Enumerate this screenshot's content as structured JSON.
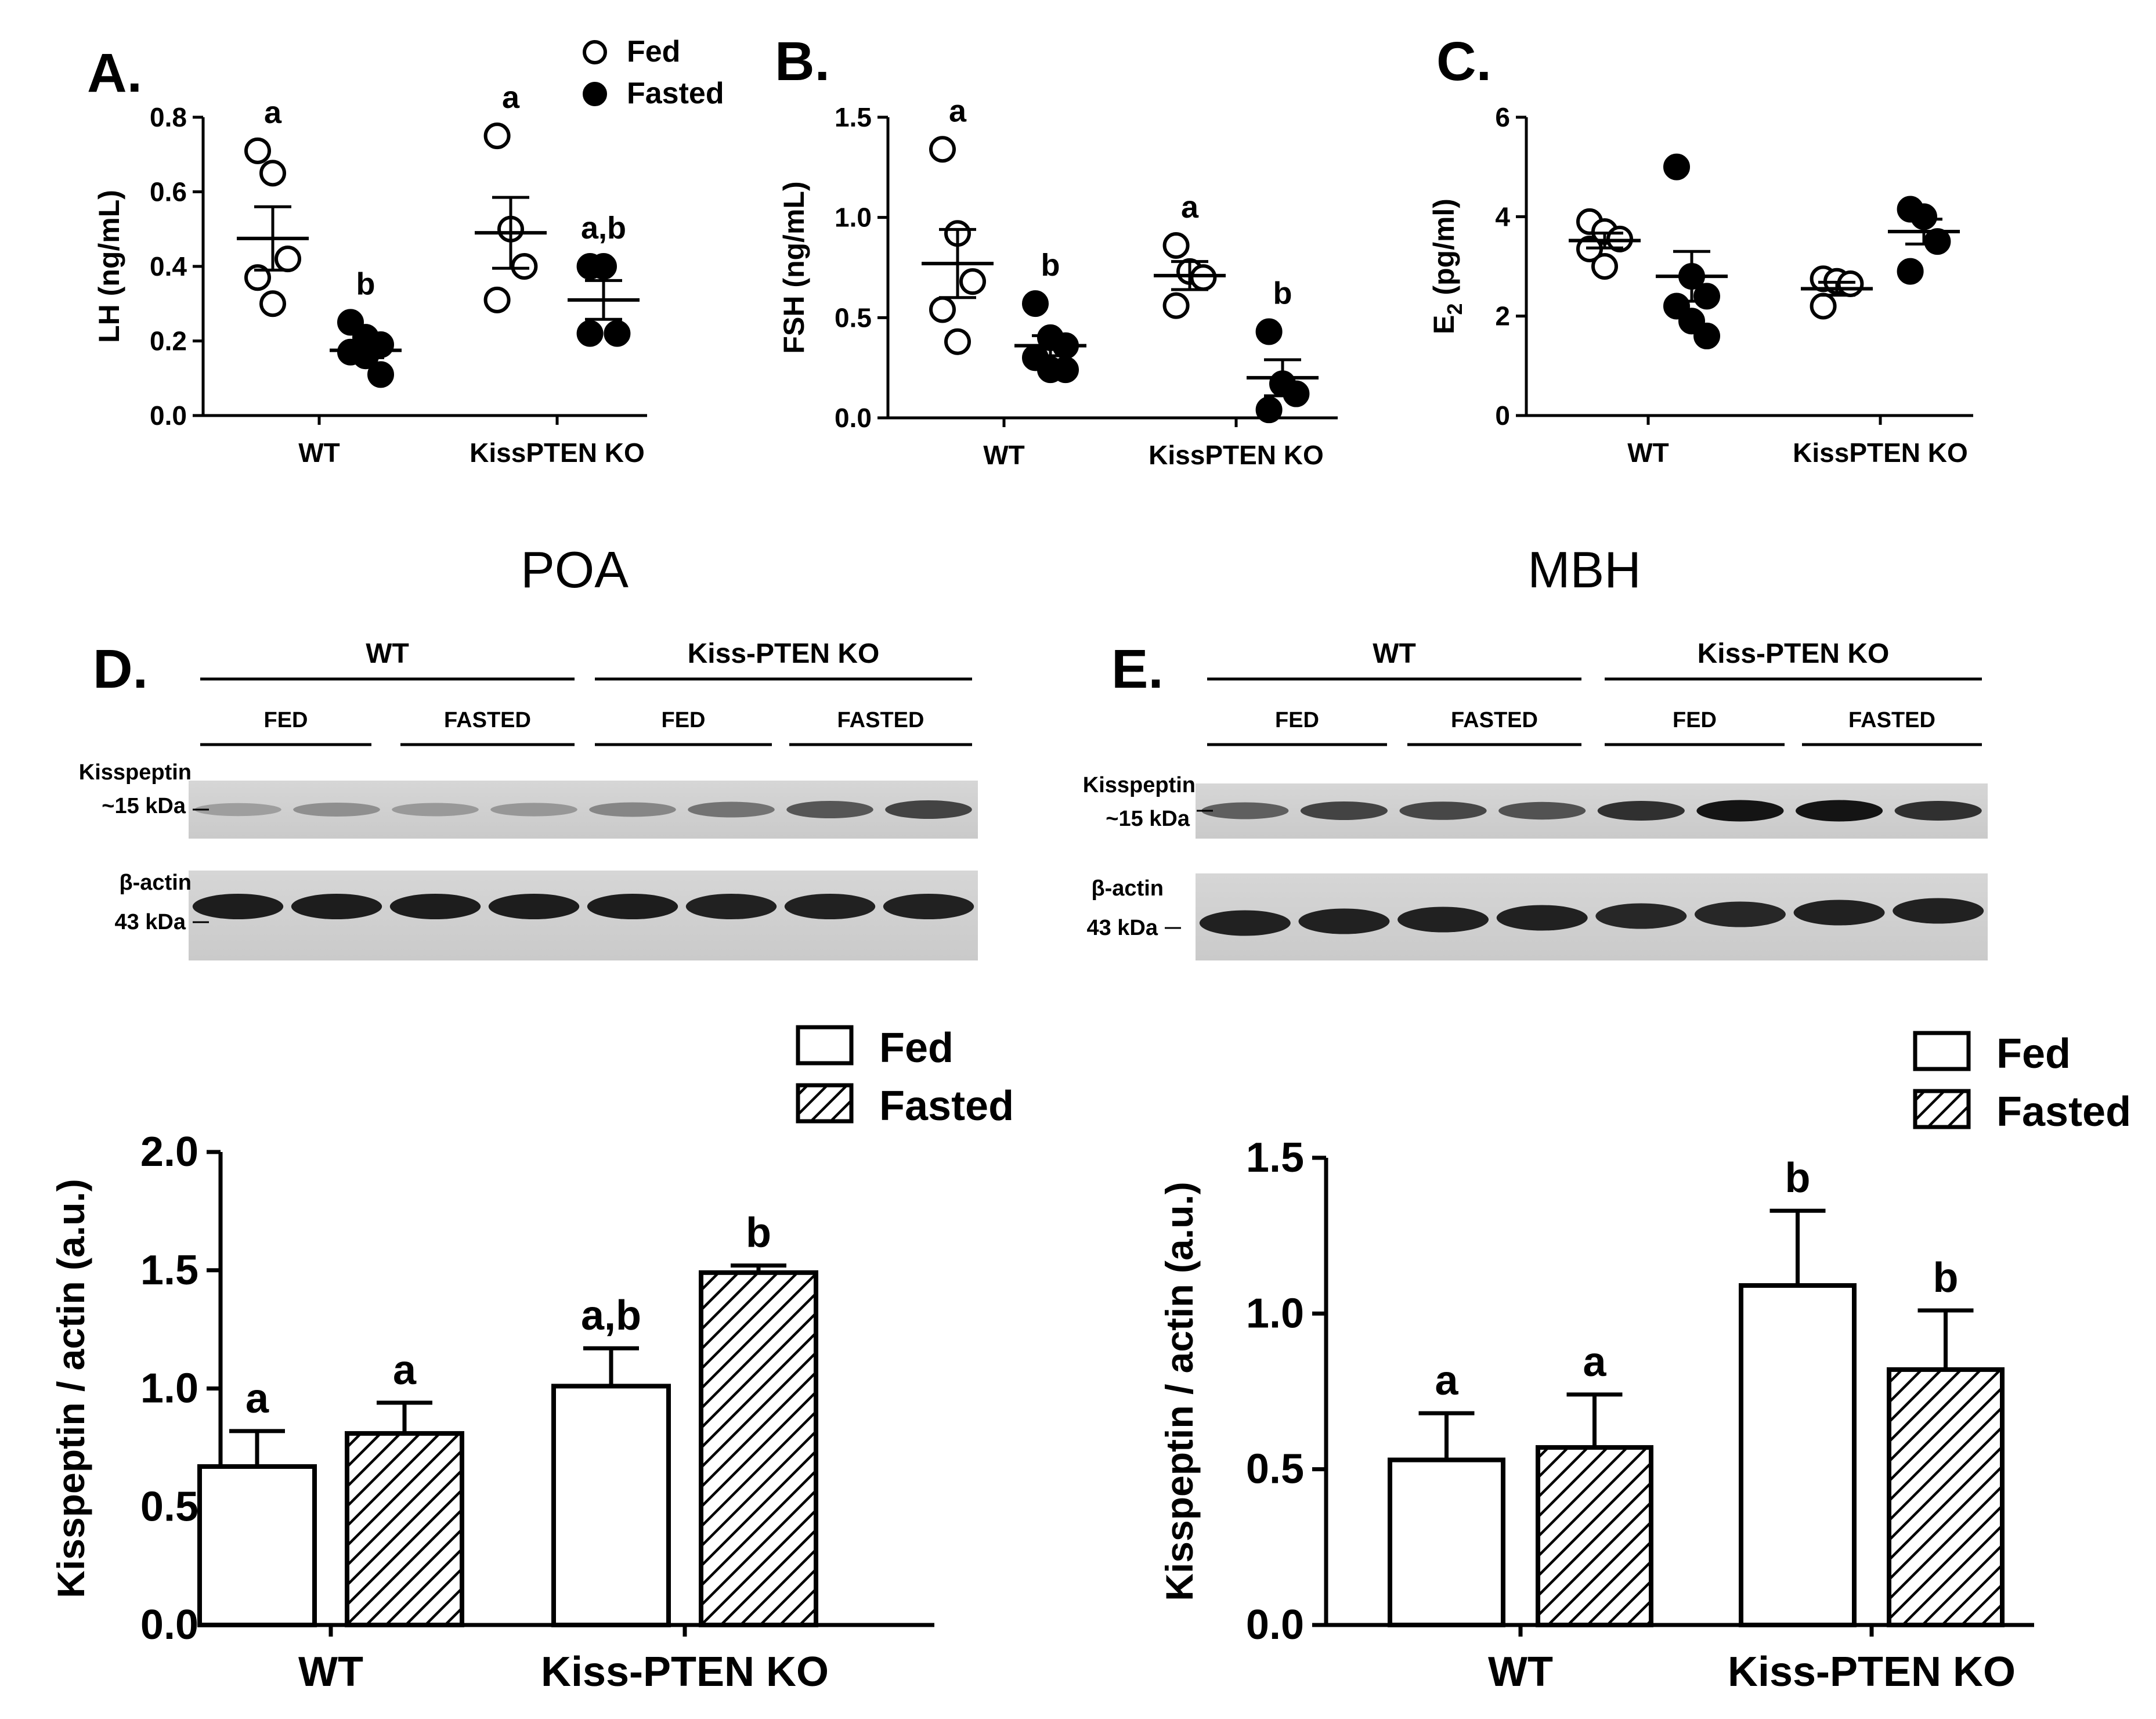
{
  "panel_letters": [
    "A.",
    "B.",
    "C.",
    "D.",
    "E."
  ],
  "region_titles": {
    "left": "POA",
    "right": "MBH"
  },
  "blots": [
    {
      "group_labels": [
        "WT",
        "Kiss-PTEN KO"
      ],
      "subgroup_labels": [
        "FED",
        "FASTED",
        "FED",
        "FASTED"
      ],
      "band1_labels": [
        "Kisspeptin",
        "~15 kDa"
      ],
      "band2_labels": [
        "β-actin",
        "43 kDa"
      ],
      "kiss_intensity": [
        0.22,
        0.3,
        0.25,
        0.26,
        0.35,
        0.45,
        0.6,
        0.7
      ],
      "actin_intensity": [
        0.9,
        0.9,
        0.9,
        0.9,
        0.9,
        0.88,
        0.88,
        0.88
      ]
    },
    {
      "group_labels": [
        "WT",
        "Kiss-PTEN KO"
      ],
      "subgroup_labels": [
        "FED",
        "FASTED",
        "FED",
        "FASTED"
      ],
      "band1_labels": [
        "Kisspeptin",
        "~15 kDa"
      ],
      "band2_labels": [
        "β-actin",
        "43 kDa"
      ],
      "kiss_intensity": [
        0.55,
        0.7,
        0.68,
        0.62,
        0.8,
        0.95,
        0.95,
        0.8
      ],
      "actin_intensity": [
        0.88,
        0.88,
        0.88,
        0.88,
        0.85,
        0.85,
        0.88,
        0.88
      ]
    }
  ],
  "chart_data": [
    {
      "type": "scatter",
      "panel": "A.",
      "ylabel": "LH (ng/mL)",
      "categories": [
        "WT",
        "KissPTEN KO"
      ],
      "ylim": [
        0,
        0.8
      ],
      "yticks": [
        "0.0",
        "0.2",
        "0.4",
        "0.6",
        "0.8"
      ],
      "legend": [
        "Fed",
        "Fasted"
      ],
      "legend_position": "top-right",
      "groups": [
        {
          "category": "WT",
          "series": "Fed",
          "points": [
            0.71,
            0.65,
            0.42,
            0.37,
            0.3
          ],
          "mean": 0.475,
          "sem": 0.085,
          "label": "a"
        },
        {
          "category": "WT",
          "series": "Fasted",
          "points": [
            0.25,
            0.21,
            0.19,
            0.17,
            0.16,
            0.11
          ],
          "mean": 0.175,
          "sem": 0.02,
          "label": "b"
        },
        {
          "category": "KissPTEN KO",
          "series": "Fed",
          "points": [
            0.75,
            0.5,
            0.4,
            0.31
          ],
          "mean": 0.49,
          "sem": 0.095,
          "label": "a"
        },
        {
          "category": "KissPTEN KO",
          "series": "Fasted",
          "points": [
            0.4,
            0.4,
            0.22,
            0.22
          ],
          "mean": 0.31,
          "sem": 0.052,
          "label": "a,b"
        }
      ]
    },
    {
      "type": "scatter",
      "panel": "B.",
      "ylabel": "FSH (ng/mL)",
      "categories": [
        "WT",
        "KissPTEN KO"
      ],
      "ylim": [
        0,
        1.5
      ],
      "yticks": [
        "0.0",
        "0.5",
        "1.0",
        "1.5"
      ],
      "groups": [
        {
          "category": "WT",
          "series": "Fed",
          "points": [
            1.34,
            0.92,
            0.68,
            0.54,
            0.38
          ],
          "mean": 0.77,
          "sem": 0.17,
          "label": "a"
        },
        {
          "category": "WT",
          "series": "Fasted",
          "points": [
            0.57,
            0.4,
            0.36,
            0.3,
            0.24,
            0.24
          ],
          "mean": 0.36,
          "sem": 0.05,
          "label": "b"
        },
        {
          "category": "KissPTEN KO",
          "series": "Fed",
          "points": [
            0.86,
            0.73,
            0.7,
            0.56
          ],
          "mean": 0.71,
          "sem": 0.07,
          "label": "a"
        },
        {
          "category": "KissPTEN KO",
          "series": "Fasted",
          "points": [
            0.43,
            0.17,
            0.12,
            0.04
          ],
          "mean": 0.2,
          "sem": 0.09,
          "label": "b"
        }
      ]
    },
    {
      "type": "scatter",
      "panel": "C.",
      "ylabel": "E2 (pg/ml)",
      "ylabel_main": "E",
      "ylabel_sub": "2",
      "ylabel_rest": " (pg/ml)",
      "categories": [
        "WT",
        "KissPTEN KO"
      ],
      "ylim": [
        0,
        6
      ],
      "yticks": [
        "0",
        "2",
        "4",
        "6"
      ],
      "groups": [
        {
          "category": "WT",
          "series": "Fed",
          "points": [
            3.9,
            3.7,
            3.55,
            3.35,
            3.0
          ],
          "mean": 3.52,
          "sem": 0.15,
          "label": ""
        },
        {
          "category": "WT",
          "series": "Fasted",
          "points": [
            5.0,
            2.8,
            2.4,
            2.2,
            1.9,
            1.6
          ],
          "mean": 2.8,
          "sem": 0.5,
          "label": ""
        },
        {
          "category": "KissPTEN KO",
          "series": "Fed",
          "points": [
            2.75,
            2.7,
            2.65,
            2.2
          ],
          "mean": 2.55,
          "sem": 0.13,
          "label": ""
        },
        {
          "category": "KissPTEN KO",
          "series": "Fasted",
          "points": [
            4.15,
            4.0,
            3.5,
            2.9
          ],
          "mean": 3.7,
          "sem": 0.25,
          "label": ""
        }
      ]
    },
    {
      "type": "bar",
      "panel": "D.",
      "ylabel": "Kisspeptin / actin (a.u.)",
      "categories": [
        "WT",
        "Kiss-PTEN KO"
      ],
      "ylim": [
        0,
        2.0
      ],
      "yticks": [
        "0.0",
        "0.5",
        "1.0",
        "1.5",
        "2.0"
      ],
      "legend": [
        "Fed",
        "Fasted"
      ],
      "legend_position": "top-right",
      "series": [
        {
          "name": "Fed",
          "values": [
            0.67,
            1.01
          ],
          "errors": [
            0.15,
            0.16
          ],
          "labels": [
            "a",
            "a,b"
          ]
        },
        {
          "name": "Fasted",
          "values": [
            0.81,
            1.49
          ],
          "errors": [
            0.13,
            0.03
          ],
          "labels": [
            "a",
            "b"
          ]
        }
      ]
    },
    {
      "type": "bar",
      "panel": "E.",
      "ylabel": "Kisspeptin / actin (a.u.)",
      "categories": [
        "WT",
        "Kiss-PTEN KO"
      ],
      "ylim": [
        0,
        1.5
      ],
      "yticks": [
        "0.0",
        "0.5",
        "1.0",
        "1.5"
      ],
      "legend": [
        "Fed",
        "Fasted"
      ],
      "legend_position": "top-right",
      "series": [
        {
          "name": "Fed",
          "values": [
            0.53,
            1.09
          ],
          "errors": [
            0.15,
            0.24
          ],
          "labels": [
            "a",
            "b"
          ]
        },
        {
          "name": "Fasted",
          "values": [
            0.57,
            0.82
          ],
          "errors": [
            0.17,
            0.19
          ],
          "labels": [
            "a",
            "b"
          ]
        }
      ]
    }
  ]
}
